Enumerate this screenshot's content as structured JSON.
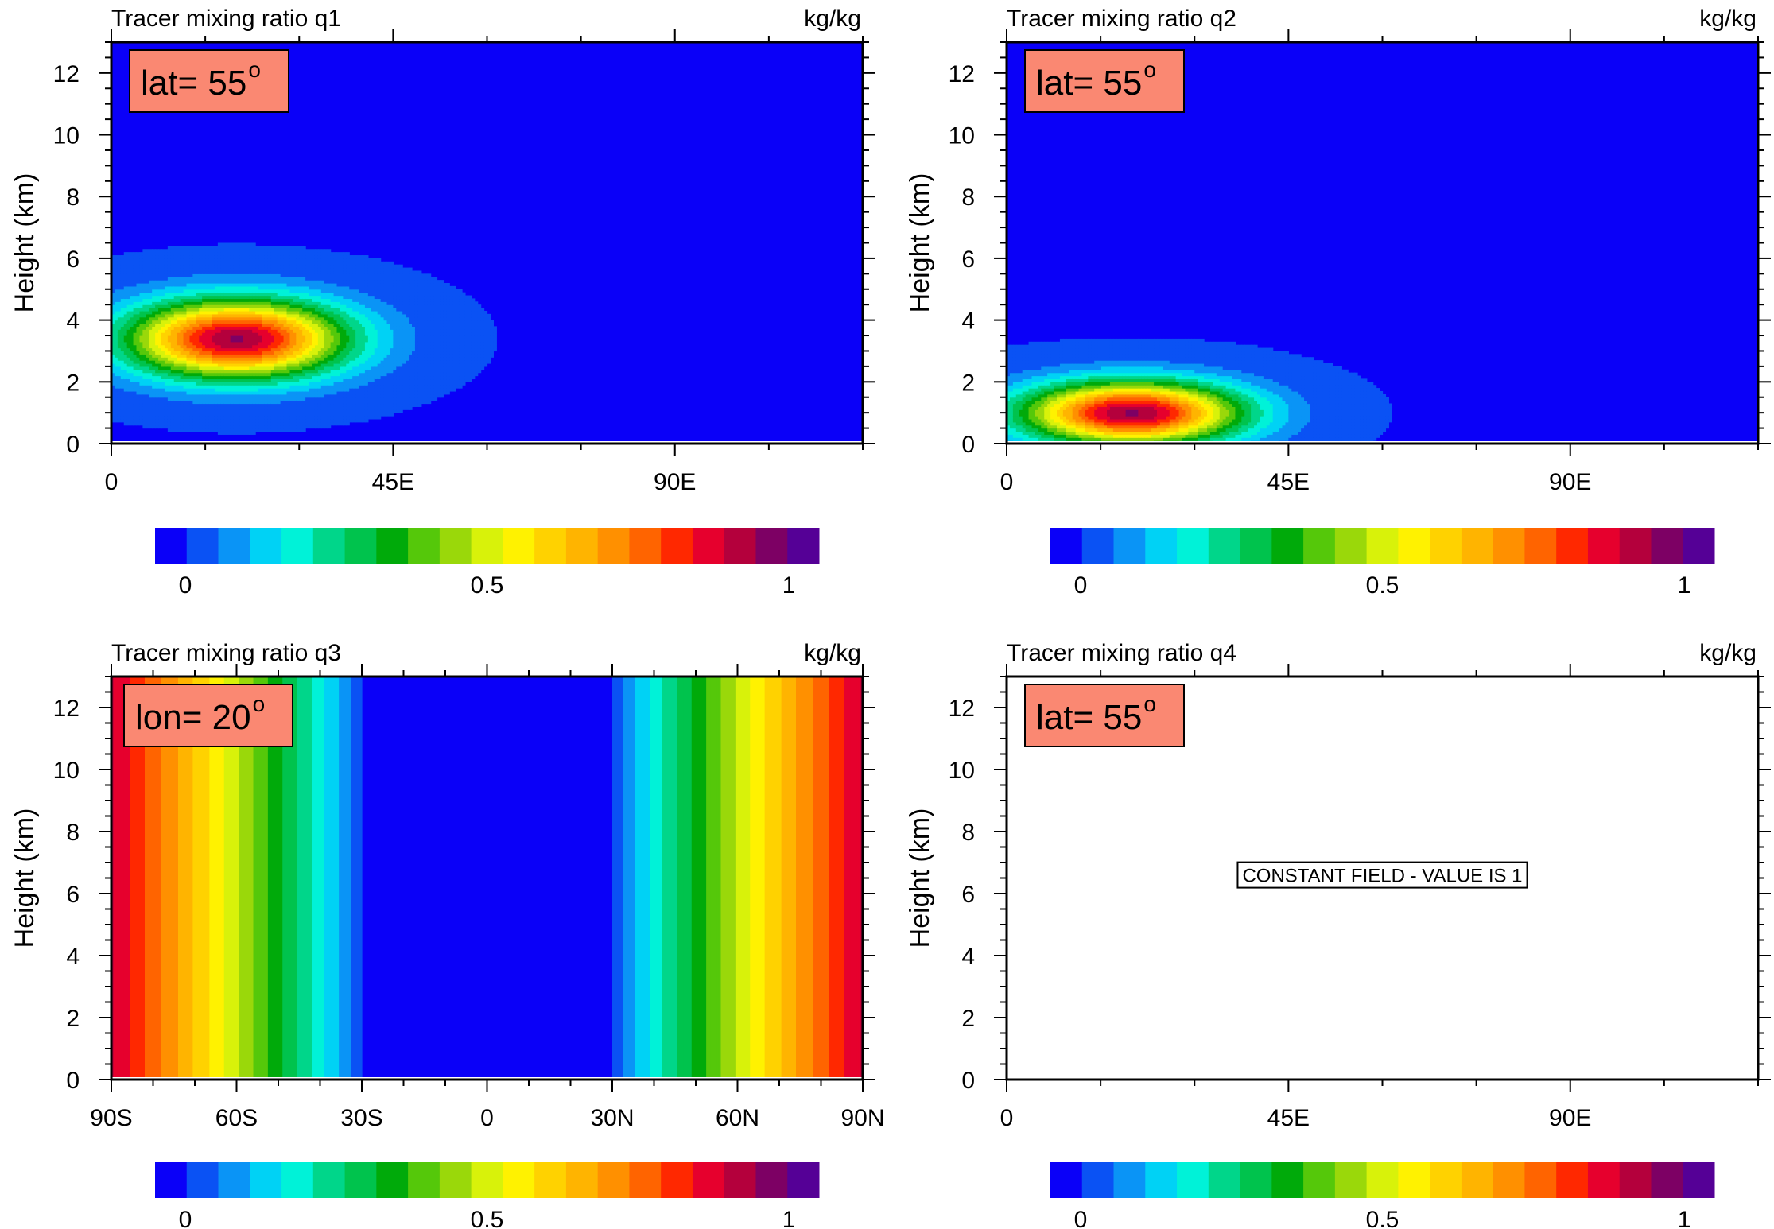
{
  "chart_data": [
    {
      "type": "heatmap",
      "title": "Tracer mixing ratio q1",
      "units": "kg/kg",
      "annotation": "lat= 55",
      "annotation_degree": "o",
      "ylabel": "Height (km)",
      "xlabel": "",
      "x_axis": "lon",
      "xlim": [
        0,
        120
      ],
      "ylim": [
        0,
        13
      ],
      "x_ticks": [
        {
          "v": 0,
          "label": "0"
        },
        {
          "v": 45,
          "label": "45E"
        },
        {
          "v": 90,
          "label": "90E"
        }
      ],
      "y_ticks": [
        {
          "v": 0,
          "label": "0"
        },
        {
          "v": 2,
          "label": "2"
        },
        {
          "v": 4,
          "label": "4"
        },
        {
          "v": 6,
          "label": "6"
        },
        {
          "v": 8,
          "label": "8"
        },
        {
          "v": 10,
          "label": "10"
        },
        {
          "v": 12,
          "label": "12"
        }
      ],
      "field": {
        "kind": "gaussian",
        "background": 0.05,
        "peak": 1.0,
        "x0": 20,
        "sx": 17,
        "y0": 3.4,
        "sy": 1.25
      },
      "colorbar": {
        "min": 0,
        "max": 1.1,
        "ticks": [
          {
            "v": 0.05,
            "label": "0"
          },
          {
            "v": 0.55,
            "label": "0.5"
          },
          {
            "v": 1.05,
            "label": "1"
          }
        ]
      }
    },
    {
      "type": "heatmap",
      "title": "Tracer mixing ratio q2",
      "units": "kg/kg",
      "annotation": "lat= 55",
      "annotation_degree": "o",
      "ylabel": "Height (km)",
      "xlabel": "",
      "x_axis": "lon",
      "xlim": [
        0,
        120
      ],
      "ylim": [
        0,
        13
      ],
      "x_ticks": [
        {
          "v": 0,
          "label": "0"
        },
        {
          "v": 45,
          "label": "45E"
        },
        {
          "v": 90,
          "label": "90E"
        }
      ],
      "y_ticks": [
        {
          "v": 0,
          "label": "0"
        },
        {
          "v": 2,
          "label": "2"
        },
        {
          "v": 4,
          "label": "4"
        },
        {
          "v": 6,
          "label": "6"
        },
        {
          "v": 8,
          "label": "8"
        },
        {
          "v": 10,
          "label": "10"
        },
        {
          "v": 12,
          "label": "12"
        }
      ],
      "field": {
        "kind": "gaussian",
        "background": 0.05,
        "peak": 1.0,
        "x0": 20,
        "sx": 17,
        "y0": 1.0,
        "sy": 1.0
      },
      "colorbar": {
        "min": 0,
        "max": 1.1,
        "ticks": [
          {
            "v": 0.05,
            "label": "0"
          },
          {
            "v": 0.55,
            "label": "0.5"
          },
          {
            "v": 1.05,
            "label": "1"
          }
        ]
      }
    },
    {
      "type": "heatmap",
      "title": "Tracer mixing ratio q3",
      "units": "kg/kg",
      "annotation": "lon= 20",
      "annotation_degree": "o",
      "ylabel": "Height (km)",
      "xlabel": "",
      "x_axis": "lat",
      "xlim": [
        -90,
        90
      ],
      "ylim": [
        0,
        13
      ],
      "x_ticks": [
        {
          "v": -90,
          "label": "90S"
        },
        {
          "v": -60,
          "label": "60S"
        },
        {
          "v": -30,
          "label": "30S"
        },
        {
          "v": 0,
          "label": "0"
        },
        {
          "v": 30,
          "label": "30N"
        },
        {
          "v": 60,
          "label": "60N"
        },
        {
          "v": 90,
          "label": "90N"
        }
      ],
      "y_ticks": [
        {
          "v": 0,
          "label": "0"
        },
        {
          "v": 2,
          "label": "2"
        },
        {
          "v": 4,
          "label": "4"
        },
        {
          "v": 6,
          "label": "6"
        },
        {
          "v": 8,
          "label": "8"
        },
        {
          "v": 10,
          "label": "10"
        },
        {
          "v": 12,
          "label": "12"
        }
      ],
      "field": {
        "kind": "lat_profile",
        "background": 0.05,
        "flat_edge": 30,
        "peak": 0.95
      },
      "colorbar": {
        "min": 0,
        "max": 1.1,
        "ticks": [
          {
            "v": 0.05,
            "label": "0"
          },
          {
            "v": 0.55,
            "label": "0.5"
          },
          {
            "v": 1.05,
            "label": "1"
          }
        ]
      }
    },
    {
      "type": "heatmap",
      "title": "Tracer mixing ratio q4",
      "units": "kg/kg",
      "annotation": "lat= 55",
      "annotation_degree": "o",
      "ylabel": "Height (km)",
      "xlabel": "",
      "x_axis": "lon",
      "xlim": [
        0,
        120
      ],
      "ylim": [
        0,
        13
      ],
      "x_ticks": [
        {
          "v": 0,
          "label": "0"
        },
        {
          "v": 45,
          "label": "45E"
        },
        {
          "v": 90,
          "label": "90E"
        }
      ],
      "y_ticks": [
        {
          "v": 0,
          "label": "0"
        },
        {
          "v": 2,
          "label": "2"
        },
        {
          "v": 4,
          "label": "4"
        },
        {
          "v": 6,
          "label": "6"
        },
        {
          "v": 8,
          "label": "8"
        },
        {
          "v": 10,
          "label": "10"
        },
        {
          "v": 12,
          "label": "12"
        }
      ],
      "field": {
        "kind": "constant",
        "value": 1
      },
      "constant_label": "CONSTANT FIELD - VALUE IS 1",
      "colorbar": {
        "min": 0,
        "max": 1.1,
        "ticks": [
          {
            "v": 0.05,
            "label": "0"
          },
          {
            "v": 0.55,
            "label": "0.5"
          },
          {
            "v": 1.05,
            "label": "1"
          }
        ]
      }
    }
  ],
  "colors": {
    "palette": [
      "#0a00f8",
      "#0a52f4",
      "#0a94f6",
      "#00d2f5",
      "#00f2d8",
      "#00d68a",
      "#00c34d",
      "#00aa0a",
      "#55c80a",
      "#9ad80a",
      "#d8f20a",
      "#fff200",
      "#ffd200",
      "#ffb400",
      "#ff9000",
      "#ff6400",
      "#ff2800",
      "#e6002d",
      "#b4003c",
      "#7d0064",
      "#550096"
    ],
    "background_blue": "#0a52f4",
    "label_box": "#fa8872"
  }
}
